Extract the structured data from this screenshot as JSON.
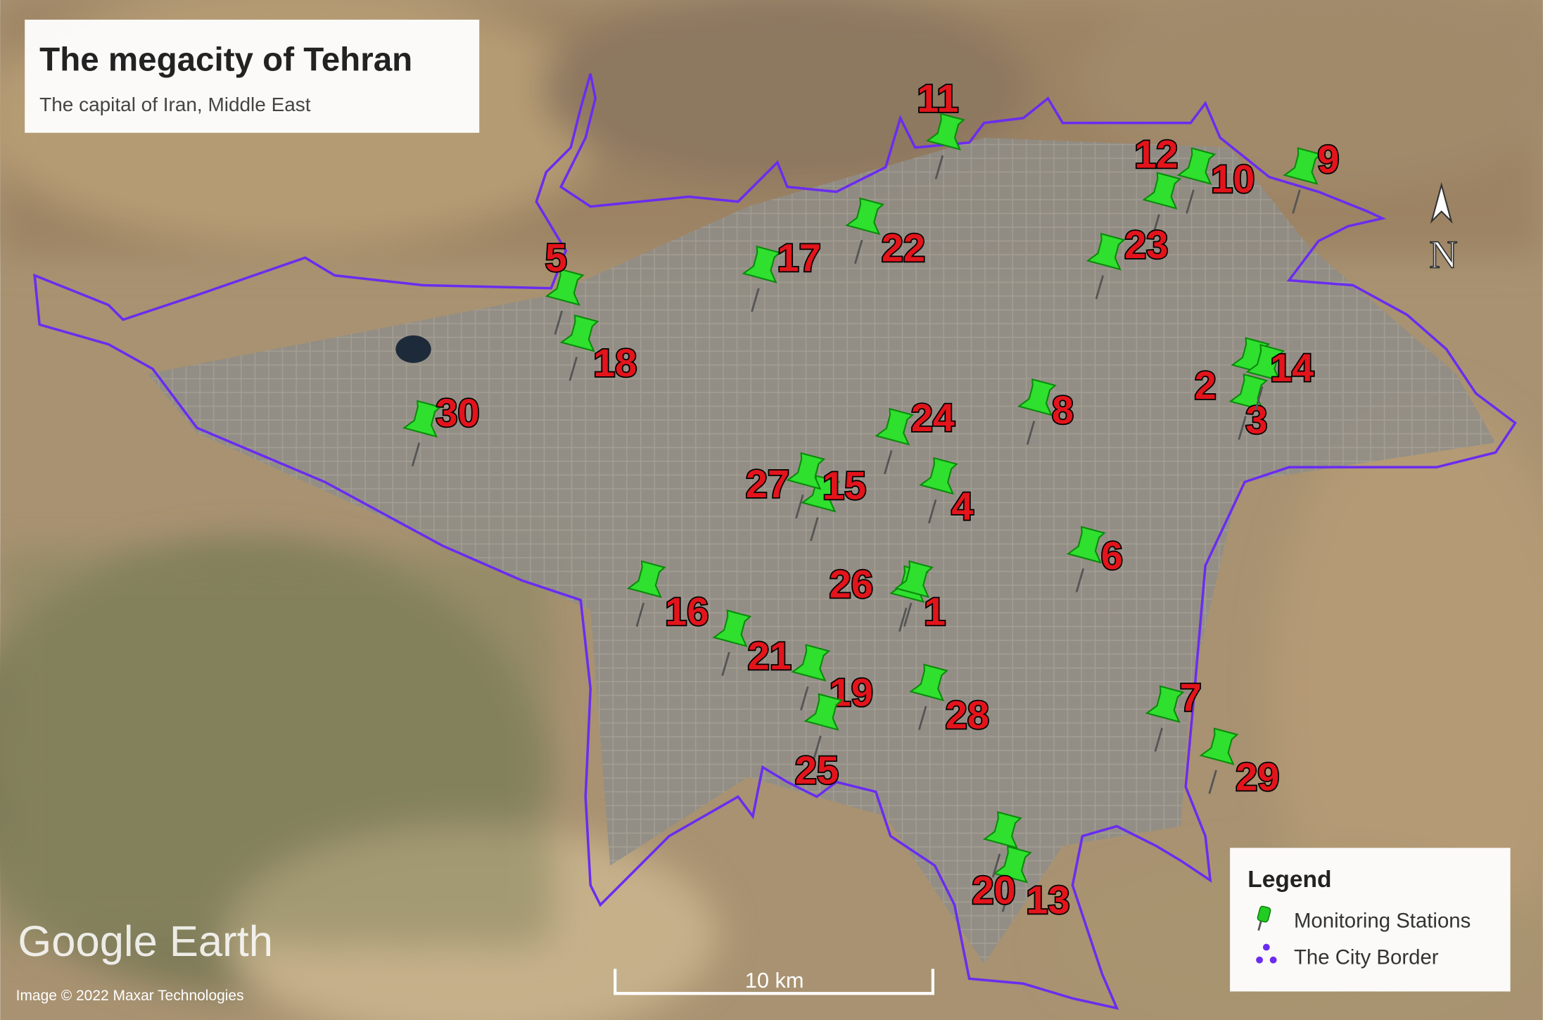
{
  "header": {
    "title": "The megacity of Tehran",
    "subtitle": "The capital of Iran, Middle East"
  },
  "stations": [
    {
      "label": "1"
    },
    {
      "label": "2"
    },
    {
      "label": "3"
    },
    {
      "label": "4"
    },
    {
      "label": "5"
    },
    {
      "label": "6"
    },
    {
      "label": "7"
    },
    {
      "label": "8"
    },
    {
      "label": "9"
    },
    {
      "label": "10"
    },
    {
      "label": "11"
    },
    {
      "label": "12"
    },
    {
      "label": "13"
    },
    {
      "label": "14"
    },
    {
      "label": "15"
    },
    {
      "label": "16"
    },
    {
      "label": "17"
    },
    {
      "label": "18"
    },
    {
      "label": "19"
    },
    {
      "label": "20"
    },
    {
      "label": "21"
    },
    {
      "label": "22"
    },
    {
      "label": "23"
    },
    {
      "label": "24"
    },
    {
      "label": "25"
    },
    {
      "label": "26"
    },
    {
      "label": "27"
    },
    {
      "label": "28"
    },
    {
      "label": "29"
    },
    {
      "label": "30"
    }
  ],
  "legend": {
    "title": "Legend",
    "items": [
      "Monitoring Stations",
      "The City Border"
    ]
  },
  "compass": "N",
  "scale_bar": "10 km",
  "attribution": {
    "logo": "Google Earth",
    "credit": "Image © 2022 Maxar Technologies"
  }
}
